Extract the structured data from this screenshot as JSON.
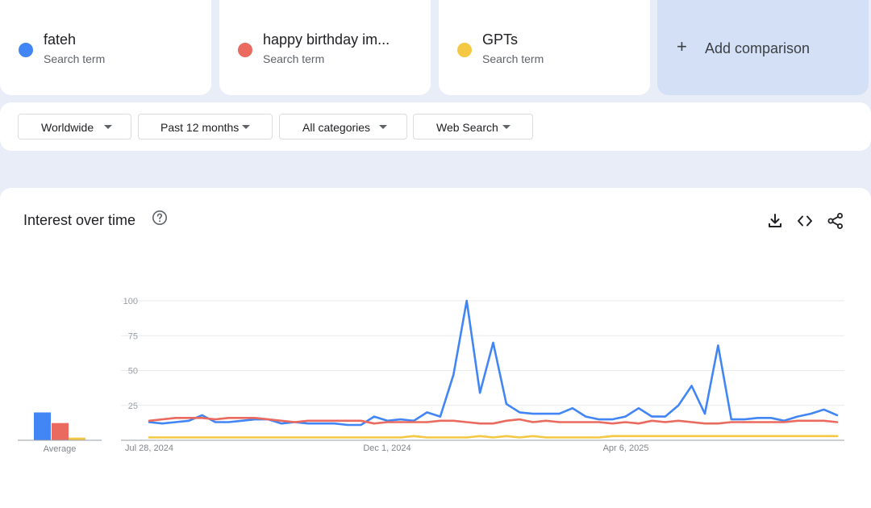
{
  "terms": [
    {
      "name": "fateh",
      "sub": "Search term",
      "color": "#4285f4"
    },
    {
      "name": "happy birthday im...",
      "sub": "Search term",
      "color": "#ea6a5f"
    },
    {
      "name": "GPTs",
      "sub": "Search term",
      "color": "#f4c842"
    }
  ],
  "add_comparison": {
    "label": "Add comparison",
    "icon": "plus-icon"
  },
  "filters": {
    "region": "Worldwide",
    "time": "Past 12 months",
    "category": "All categories",
    "property": "Web Search"
  },
  "panel": {
    "title": "Interest over time",
    "help_icon": "help-circle-icon",
    "tools": [
      "download-icon",
      "embed-code-icon",
      "share-icon"
    ],
    "average_label": "Average"
  },
  "chart_data": {
    "type": "line",
    "title": "Interest over time",
    "ylim": [
      0,
      100
    ],
    "y_ticks": [
      25,
      50,
      75,
      100
    ],
    "x_tick_labels": [
      "Jul 28, 2024",
      "Dec 1, 2024",
      "Apr 6, 2025"
    ],
    "x_start": "Jul 28, 2024",
    "grid": true,
    "averages": [
      {
        "name": "fateh",
        "value": 21
      },
      {
        "name": "happy birthday im...",
        "value": 13
      },
      {
        "name": "GPTs",
        "value": 2
      }
    ],
    "series": [
      {
        "name": "fateh",
        "color": "#4285f4",
        "values": [
          13,
          12,
          13,
          14,
          18,
          13,
          13,
          14,
          15,
          15,
          12,
          13,
          12,
          12,
          12,
          11,
          11,
          17,
          14,
          15,
          14,
          20,
          17,
          47,
          100,
          34,
          70,
          26,
          20,
          19,
          19,
          19,
          23,
          17,
          15,
          15,
          17,
          23,
          17,
          17,
          25,
          39,
          19,
          68,
          15,
          15,
          16,
          16,
          14,
          17,
          19,
          22,
          18
        ]
      },
      {
        "name": "happy birthday im...",
        "color": "#ea6a5f",
        "values": [
          14,
          15,
          16,
          16,
          16,
          15,
          16,
          16,
          16,
          15,
          14,
          13,
          14,
          14,
          14,
          14,
          14,
          12,
          13,
          13,
          13,
          13,
          14,
          14,
          13,
          12,
          12,
          14,
          15,
          13,
          14,
          13,
          13,
          13,
          13,
          12,
          13,
          12,
          14,
          13,
          14,
          13,
          12,
          12,
          13,
          13,
          13,
          13,
          13,
          14,
          14,
          14,
          13
        ]
      },
      {
        "name": "GPTs",
        "color": "#f4c842",
        "values": [
          2,
          2,
          2,
          2,
          2,
          2,
          2,
          2,
          2,
          2,
          2,
          2,
          2,
          2,
          2,
          2,
          2,
          2,
          2,
          2,
          3,
          2,
          2,
          2,
          2,
          3,
          2,
          3,
          2,
          3,
          2,
          2,
          2,
          2,
          2,
          3,
          3,
          3,
          3,
          3,
          3,
          3,
          3,
          3,
          3,
          3,
          3,
          3,
          3,
          3,
          3,
          3,
          3
        ]
      }
    ]
  }
}
